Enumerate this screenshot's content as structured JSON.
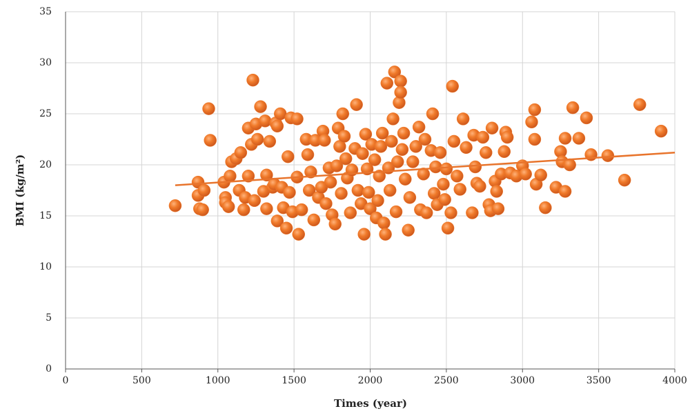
{
  "chart_data": {
    "type": "scatter",
    "x_label": "Times (year)",
    "y_label": "BMI (kg/m²)",
    "color": "#f07a2a",
    "trend_color": "#e8742c",
    "grid": true,
    "xlim": [
      0,
      4000
    ],
    "xticks": [
      0,
      500,
      1000,
      1500,
      2000,
      2500,
      3000,
      3500,
      4000
    ],
    "ylim": [
      0,
      35
    ],
    "yticks": [
      0,
      5,
      10,
      15,
      20,
      25,
      30,
      35
    ],
    "x": [
      720,
      870,
      870,
      880,
      900,
      910,
      940,
      950,
      1040,
      1050,
      1050,
      1070,
      1080,
      1090,
      1120,
      1140,
      1150,
      1170,
      1180,
      1200,
      1200,
      1220,
      1230,
      1240,
      1250,
      1260,
      1280,
      1300,
      1310,
      1320,
      1320,
      1340,
      1360,
      1370,
      1380,
      1390,
      1390,
      1410,
      1420,
      1430,
      1450,
      1460,
      1470,
      1480,
      1490,
      1520,
      1520,
      1530,
      1550,
      1580,
      1590,
      1600,
      1610,
      1630,
      1640,
      1660,
      1680,
      1690,
      1700,
      1710,
      1730,
      1740,
      1750,
      1770,
      1780,
      1790,
      1800,
      1810,
      1820,
      1830,
      1840,
      1850,
      1870,
      1880,
      1900,
      1910,
      1920,
      1940,
      1950,
      1960,
      1970,
      1980,
      1990,
      2000,
      2010,
      2030,
      2040,
      2050,
      2060,
      2070,
      2080,
      2090,
      2100,
      2110,
      2120,
      2130,
      2140,
      2150,
      2160,
      2170,
      2180,
      2190,
      2200,
      2200,
      2210,
      2220,
      2230,
      2250,
      2260,
      2280,
      2300,
      2320,
      2330,
      2350,
      2360,
      2370,
      2400,
      2410,
      2420,
      2430,
      2440,
      2460,
      2480,
      2490,
      2500,
      2510,
      2530,
      2540,
      2550,
      2570,
      2590,
      2610,
      2630,
      2670,
      2680,
      2690,
      2700,
      2720,
      2740,
      2760,
      2780,
      2790,
      2800,
      2820,
      2830,
      2840,
      2860,
      2880,
      2890,
      2900,
      2920,
      2960,
      3000,
      3020,
      3060,
      3080,
      3080,
      3090,
      3120,
      3150,
      3220,
      3250,
      3260,
      3280,
      3280,
      3310,
      3330,
      3370,
      3420,
      3450,
      3560,
      3670,
      3770,
      3910
    ],
    "y": [
      16,
      18.3,
      17,
      15.7,
      15.6,
      17.5,
      25.5,
      22.4,
      18.3,
      16.8,
      16.3,
      15.9,
      18.9,
      20.3,
      20.6,
      17.5,
      21.2,
      15.6,
      16.8,
      18.9,
      23.6,
      22,
      28.3,
      16.5,
      24,
      22.5,
      25.7,
      17.4,
      24.3,
      19,
      15.7,
      22.3,
      17.8,
      18.1,
      24.1,
      23.8,
      14.5,
      25,
      17.8,
      15.8,
      13.8,
      20.8,
      17.3,
      24.6,
      15.4,
      24.5,
      18.8,
      13.2,
      15.6,
      22.5,
      21,
      17.5,
      19.3,
      14.6,
      22.4,
      16.8,
      17.8,
      23.3,
      22.4,
      16.2,
      19.7,
      18.3,
      15.1,
      14.2,
      19.9,
      23.6,
      21.8,
      17.2,
      25,
      22.8,
      20.6,
      18.7,
      15.3,
      19.5,
      21.6,
      25.9,
      17.5,
      16.2,
      21.1,
      13.2,
      23,
      19.6,
      17.3,
      15.7,
      22,
      20.5,
      14.8,
      16.5,
      18.9,
      21.8,
      23.1,
      14.3,
      13.2,
      28,
      19.7,
      17.5,
      22.3,
      24.5,
      29.1,
      15.4,
      20.3,
      26.1,
      28.2,
      27.1,
      21.5,
      23.1,
      18.6,
      13.6,
      16.8,
      20.3,
      21.8,
      23.7,
      15.6,
      19.1,
      22.5,
      15.3,
      21.4,
      25,
      17.2,
      19.8,
      16.1,
      21.2,
      18.1,
      16.6,
      19.6,
      13.8,
      15.3,
      27.7,
      22.3,
      18.9,
      17.6,
      24.5,
      21.7,
      15.3,
      22.9,
      19.8,
      18.2,
      17.9,
      22.7,
      21.2,
      16.1,
      15.5,
      23.6,
      18.4,
      17.4,
      15.7,
      19.1,
      21.3,
      23.2,
      22.7,
      19.2,
      18.9,
      19.9,
      19.1,
      24.2,
      25.4,
      22.5,
      18.1,
      19,
      15.8,
      17.8,
      21.3,
      20.3,
      17.4,
      22.6,
      20,
      25.6,
      22.6,
      24.6,
      21,
      20.9,
      18.5,
      25.9,
      23.3
    ],
    "trendline": {
      "x": [
        720,
        4000
      ],
      "y": [
        18.0,
        21.2
      ]
    }
  }
}
